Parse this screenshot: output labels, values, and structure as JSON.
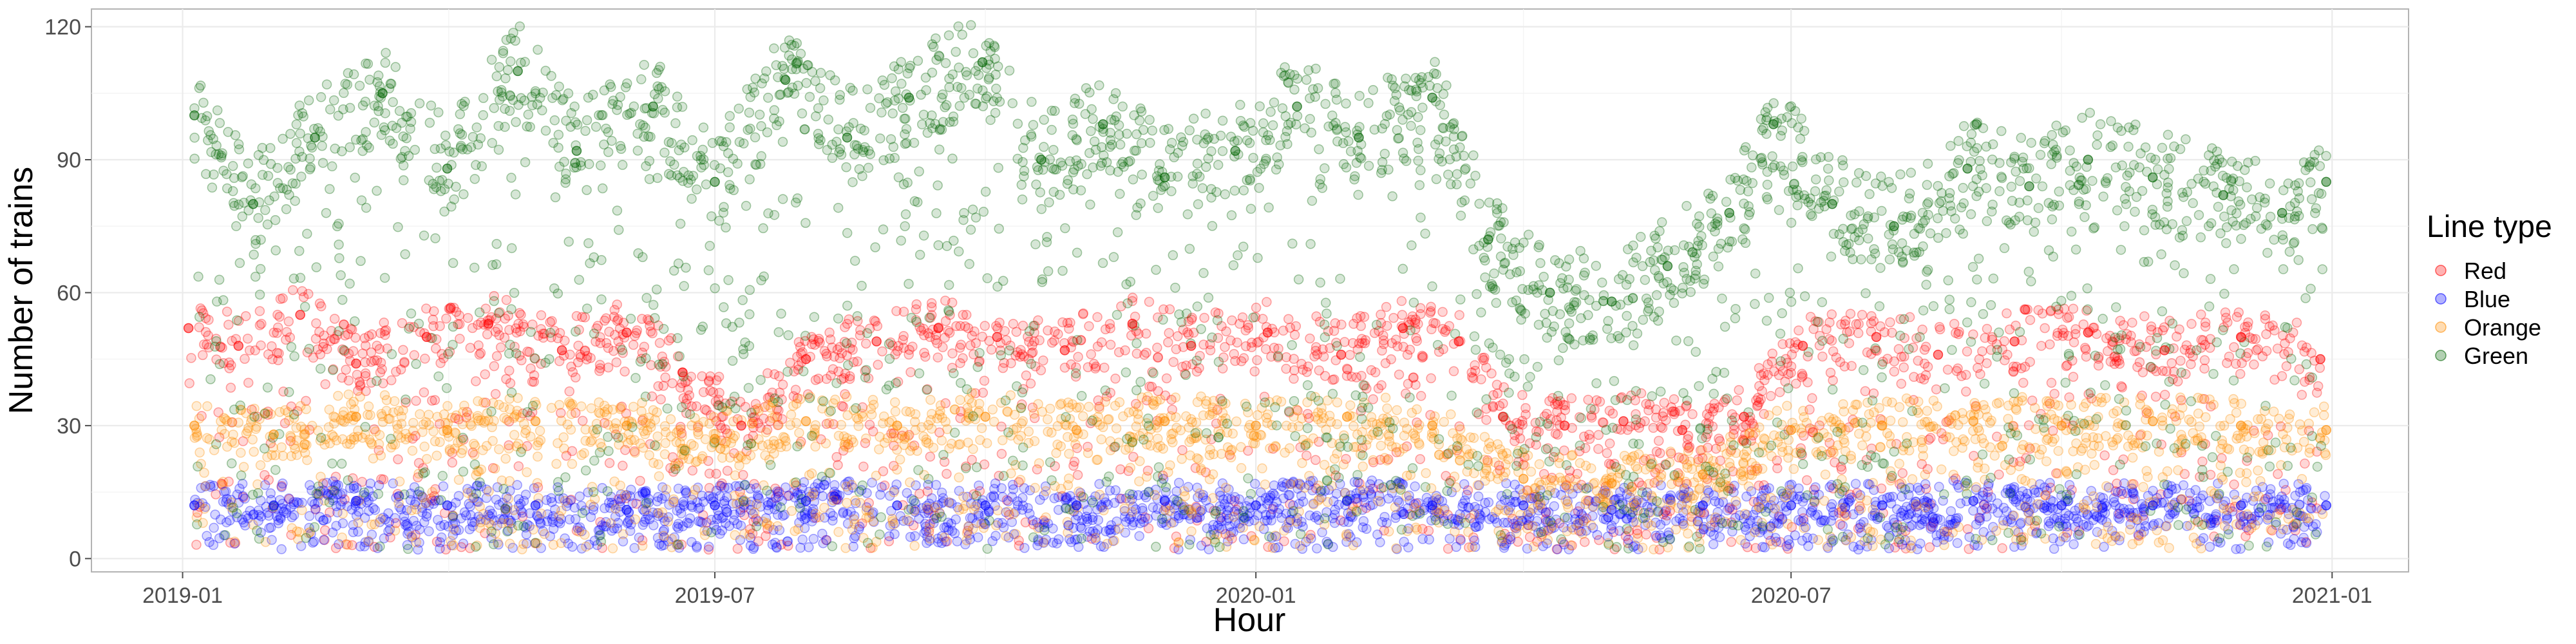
{
  "chart_data": {
    "type": "scatter",
    "xlabel": "Hour",
    "ylabel": "Number of trains",
    "x_ticks": [
      "2019-01",
      "2019-07",
      "2020-01",
      "2020-07",
      "2021-01"
    ],
    "y_ticks": [
      "0",
      "30",
      "60",
      "90",
      "120"
    ],
    "xlim": [
      "2018-12-01",
      "2021-01-27"
    ],
    "ylim": [
      -3,
      124
    ],
    "grid": true,
    "legend": {
      "title": "Line type",
      "placement": "right",
      "items": [
        "Red",
        "Blue",
        "Orange",
        "Green"
      ]
    },
    "series": [
      {
        "name": "Red",
        "color": "#ff0000",
        "points": [
          [
            "2019-01-03",
            52
          ],
          [
            "2019-01-20",
            48
          ],
          [
            "2019-02-10",
            55
          ],
          [
            "2019-03-01",
            44
          ],
          [
            "2019-03-25",
            50
          ],
          [
            "2019-04-15",
            53
          ],
          [
            "2019-05-10",
            47
          ],
          [
            "2019-06-01",
            51
          ],
          [
            "2019-06-20",
            42
          ],
          [
            "2019-07-10",
            30
          ],
          [
            "2019-08-01",
            45
          ],
          [
            "2019-08-25",
            49
          ],
          [
            "2019-09-15",
            52
          ],
          [
            "2019-10-05",
            50
          ],
          [
            "2019-10-28",
            47
          ],
          [
            "2019-11-20",
            53
          ],
          [
            "2019-12-10",
            48
          ],
          [
            "2020-01-05",
            51
          ],
          [
            "2020-01-30",
            46
          ],
          [
            "2020-02-20",
            52
          ],
          [
            "2020-03-10",
            49
          ],
          [
            "2020-03-25",
            32
          ],
          [
            "2020-04-15",
            30
          ],
          [
            "2020-05-05",
            31
          ],
          [
            "2020-05-25",
            29
          ],
          [
            "2020-06-15",
            32
          ],
          [
            "2020-07-05",
            48
          ],
          [
            "2020-07-30",
            50
          ],
          [
            "2020-08-20",
            46
          ],
          [
            "2020-09-15",
            49
          ],
          [
            "2020-10-10",
            51
          ],
          [
            "2020-11-05",
            47
          ],
          [
            "2020-12-01",
            50
          ],
          [
            "2020-12-28",
            45
          ]
        ]
      },
      {
        "name": "Blue",
        "color": "#0000ff",
        "points": [
          [
            "2019-01-05",
            12
          ],
          [
            "2019-02-01",
            12
          ],
          [
            "2019-03-01",
            13
          ],
          [
            "2019-04-01",
            12
          ],
          [
            "2019-05-01",
            12
          ],
          [
            "2019-06-01",
            11
          ],
          [
            "2019-07-01",
            12
          ],
          [
            "2019-08-01",
            13
          ],
          [
            "2019-09-01",
            12
          ],
          [
            "2019-10-01",
            12
          ],
          [
            "2019-11-01",
            12
          ],
          [
            "2019-12-01",
            13
          ],
          [
            "2020-01-01",
            12
          ],
          [
            "2020-02-01",
            13
          ],
          [
            "2020-03-01",
            12
          ],
          [
            "2020-04-01",
            12
          ],
          [
            "2020-05-01",
            11
          ],
          [
            "2020-06-01",
            12
          ],
          [
            "2020-07-01",
            12
          ],
          [
            "2020-08-01",
            12
          ],
          [
            "2020-09-01",
            13
          ],
          [
            "2020-10-01",
            12
          ],
          [
            "2020-11-01",
            12
          ],
          [
            "2020-12-01",
            12
          ],
          [
            "2020-12-30",
            12
          ]
        ]
      },
      {
        "name": "Orange",
        "color": "#ff8c00",
        "points": [
          [
            "2019-01-05",
            30
          ],
          [
            "2019-02-01",
            28
          ],
          [
            "2019-03-01",
            32
          ],
          [
            "2019-04-01",
            29
          ],
          [
            "2019-05-01",
            31
          ],
          [
            "2019-06-01",
            30
          ],
          [
            "2019-07-01",
            27
          ],
          [
            "2019-08-01",
            31
          ],
          [
            "2019-09-01",
            30
          ],
          [
            "2019-10-01",
            32
          ],
          [
            "2019-11-01",
            29
          ],
          [
            "2019-12-01",
            31
          ],
          [
            "2020-01-01",
            30
          ],
          [
            "2020-02-01",
            32
          ],
          [
            "2020-03-01",
            30
          ],
          [
            "2020-04-01",
            18
          ],
          [
            "2020-05-01",
            17
          ],
          [
            "2020-06-01",
            19
          ],
          [
            "2020-07-01",
            29
          ],
          [
            "2020-08-01",
            30
          ],
          [
            "2020-09-01",
            31
          ],
          [
            "2020-10-01",
            30
          ],
          [
            "2020-11-01",
            31
          ],
          [
            "2020-12-01",
            30
          ],
          [
            "2020-12-30",
            29
          ]
        ]
      },
      {
        "name": "Green",
        "color": "#006400",
        "points": [
          [
            "2019-01-05",
            100
          ],
          [
            "2019-01-25",
            80
          ],
          [
            "2019-02-15",
            95
          ],
          [
            "2019-03-10",
            105
          ],
          [
            "2019-04-01",
            88
          ],
          [
            "2019-04-25",
            110
          ],
          [
            "2019-05-15",
            92
          ],
          [
            "2019-06-10",
            102
          ],
          [
            "2019-07-01",
            85
          ],
          [
            "2019-07-25",
            108
          ],
          [
            "2019-08-15",
            95
          ],
          [
            "2019-09-05",
            104
          ],
          [
            "2019-09-30",
            112
          ],
          [
            "2019-10-20",
            90
          ],
          [
            "2019-11-10",
            98
          ],
          [
            "2019-12-01",
            86
          ],
          [
            "2019-12-25",
            92
          ],
          [
            "2020-01-15",
            102
          ],
          [
            "2020-02-05",
            95
          ],
          [
            "2020-03-01",
            104
          ],
          [
            "2020-03-20",
            72
          ],
          [
            "2020-04-10",
            60
          ],
          [
            "2020-05-01",
            58
          ],
          [
            "2020-05-20",
            66
          ],
          [
            "2020-06-10",
            78
          ],
          [
            "2020-06-25",
            98
          ],
          [
            "2020-07-15",
            80
          ],
          [
            "2020-08-05",
            75
          ],
          [
            "2020-08-30",
            88
          ],
          [
            "2020-09-20",
            84
          ],
          [
            "2020-10-10",
            90
          ],
          [
            "2020-11-01",
            86
          ],
          [
            "2020-11-25",
            82
          ],
          [
            "2020-12-15",
            78
          ],
          [
            "2020-12-30",
            85
          ]
        ]
      }
    ]
  }
}
